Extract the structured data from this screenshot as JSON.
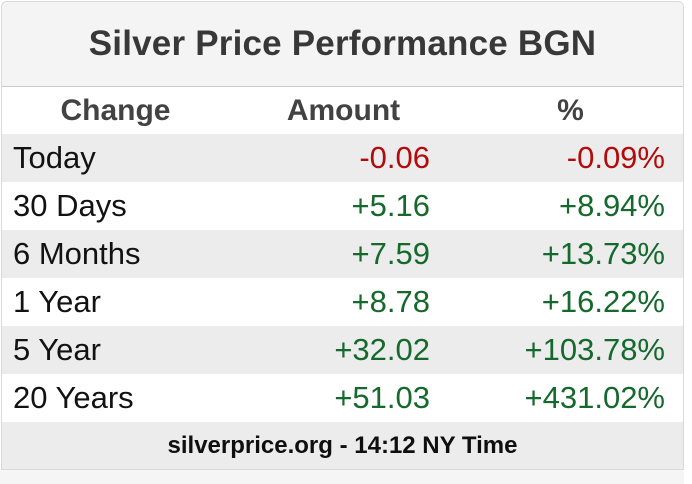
{
  "widget": {
    "title": "Silver Price Performance BGN",
    "footer_text": "silverprice.org - 14:12 NY Time"
  },
  "colors": {
    "positive": "#15692d",
    "negative": "#b30b0b",
    "title_text": "#383838",
    "title_bg": "#f4f4f4",
    "row_alt_bg": "#ececec",
    "footer_bg": "#ececec",
    "border": "#d9d9d9"
  },
  "chart_data": {
    "type": "table",
    "title": "Silver Price Performance BGN",
    "columns": [
      "Change",
      "Amount",
      "%"
    ],
    "rows": [
      {
        "label": "Today",
        "amount": "-0.06",
        "percent": "-0.09%",
        "amount_value": -0.06,
        "percent_value": -0.09,
        "direction": "negative"
      },
      {
        "label": "30 Days",
        "amount": "+5.16",
        "percent": "+8.94%",
        "amount_value": 5.16,
        "percent_value": 8.94,
        "direction": "positive"
      },
      {
        "label": "6 Months",
        "amount": "+7.59",
        "percent": "+13.73%",
        "amount_value": 7.59,
        "percent_value": 13.73,
        "direction": "positive"
      },
      {
        "label": "1 Year",
        "amount": "+8.78",
        "percent": "+16.22%",
        "amount_value": 8.78,
        "percent_value": 16.22,
        "direction": "positive"
      },
      {
        "label": "5 Year",
        "amount": "+32.02",
        "percent": "+103.78%",
        "amount_value": 32.02,
        "percent_value": 103.78,
        "direction": "positive"
      },
      {
        "label": "20 Years",
        "amount": "+51.03",
        "percent": "+431.02%",
        "amount_value": 51.03,
        "percent_value": 431.02,
        "direction": "positive"
      }
    ],
    "footer": "silverprice.org - 14:12 NY Time"
  }
}
